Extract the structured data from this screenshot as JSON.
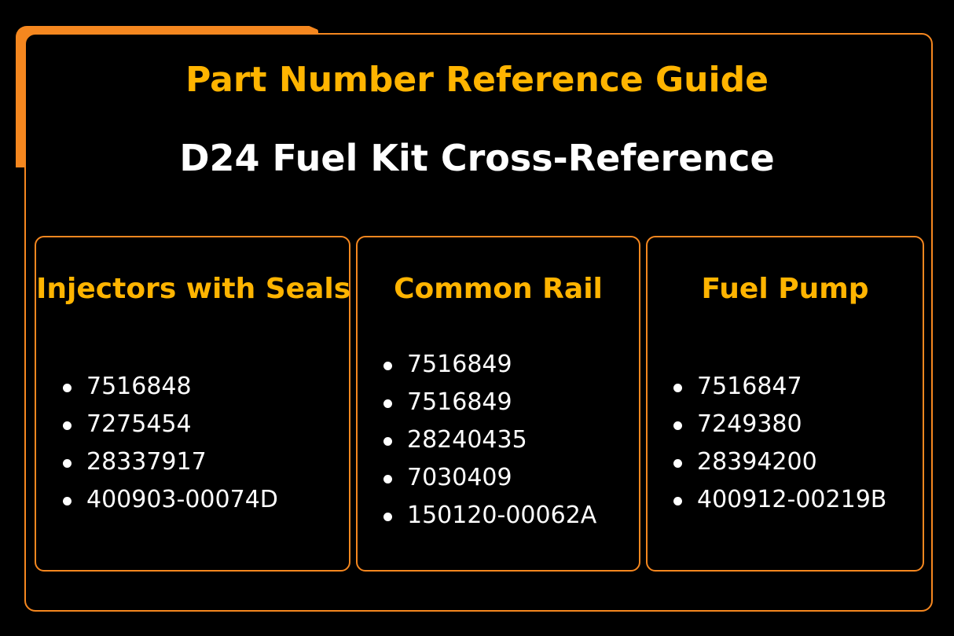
{
  "title": "Part Number Reference Guide",
  "subtitle": "D24 Fuel Kit Cross-Reference",
  "colors": {
    "accent": "#f5871f",
    "heading": "#ffb400",
    "text": "#ffffff",
    "background": "#000000"
  },
  "cards": [
    {
      "title": "Injectors with Seals",
      "items": [
        "7516848",
        "7275454",
        "28337917",
        "400903-00074D"
      ]
    },
    {
      "title": "Common Rail",
      "items": [
        "7516849",
        "7516849",
        "28240435",
        "7030409",
        "150120-00062A"
      ]
    },
    {
      "title": "Fuel Pump",
      "items": [
        "7516847",
        "7249380",
        "28394200",
        "400912-00219B"
      ]
    }
  ]
}
